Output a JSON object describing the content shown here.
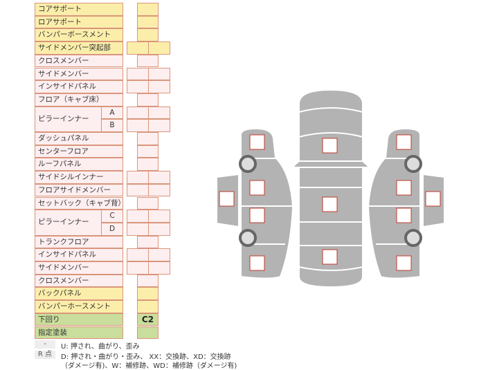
{
  "rows": [
    {
      "label": "コアサポート",
      "color": "y",
      "cells": 1
    },
    {
      "label": "ロアサポート",
      "color": "y",
      "cells": 1
    },
    {
      "label": "バンパーボースメント",
      "color": "y",
      "cells": 1
    },
    {
      "label": "サイドメンバー突起部",
      "color": "y",
      "cells": 2
    },
    {
      "label": "クロスメンバー",
      "color": "p",
      "cells": 1
    },
    {
      "label": "サイドメンバー",
      "color": "p",
      "cells": 2
    },
    {
      "label": "インサイドパネル",
      "color": "p",
      "cells": 2
    },
    {
      "label": "フロア（キャブ床）",
      "color": "p",
      "cells": 1
    },
    {
      "label": "ピラーインナー",
      "sub": "A",
      "color": "p",
      "cells": 2
    },
    {
      "label": "",
      "sub": "B",
      "color": "p",
      "cells": 2
    },
    {
      "label": "ダッシュパネル",
      "color": "p",
      "cells": 1
    },
    {
      "label": "センターフロア",
      "color": "p",
      "cells": 1
    },
    {
      "label": "ルーフパネル",
      "color": "p",
      "cells": 1
    },
    {
      "label": "サイドシルインナー",
      "color": "p",
      "cells": 2
    },
    {
      "label": "フロアサイドメンバー",
      "color": "p",
      "cells": 2
    },
    {
      "label": "セットバック（キャブ背）",
      "color": "p",
      "cells": 1
    },
    {
      "label": "ピラーインナー",
      "sub": "C",
      "color": "p",
      "cells": 2
    },
    {
      "label": "",
      "sub": "D",
      "color": "p",
      "cells": 2
    },
    {
      "label": "トランクフロア",
      "color": "p",
      "cells": 1
    },
    {
      "label": "インサイドパネル",
      "color": "p",
      "cells": 2
    },
    {
      "label": "サイドメンバー",
      "color": "p",
      "cells": 2
    },
    {
      "label": "クロスメンバー",
      "color": "p",
      "cells": 1
    },
    {
      "label": "バックパネル",
      "color": "y",
      "cells": 1
    },
    {
      "label": "バンパーホースメント",
      "color": "y",
      "cells": 1
    },
    {
      "label": "下回り",
      "color": "g",
      "cells": 1,
      "value": "C2"
    },
    {
      "label": "指定塗装",
      "color": "g",
      "cells": 1
    }
  ],
  "legend": {
    "key1": "-",
    "text1": "U: 押され、曲がり、歪み",
    "key2": "R 点",
    "text2": "D: 押され・曲がり・歪み、 XX：交換跡、XD：交換跡",
    "text3": "（ダメージ有)、W：補修跡、WD：補修跡（ダメージ有)"
  },
  "colors": {
    "body": "#b3b3b3",
    "marker": "#c0392b",
    "wheel": "#666666"
  }
}
